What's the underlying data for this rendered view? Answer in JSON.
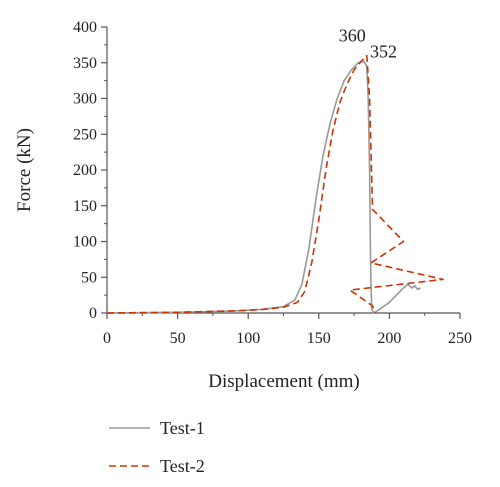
{
  "chart_data": {
    "type": "line",
    "title": "",
    "xlabel": "Displacement (mm)",
    "ylabel": "Force (kN)",
    "xlim": [
      0,
      250
    ],
    "ylim": [
      0,
      400
    ],
    "xticks": [
      "0",
      "50",
      "100",
      "150",
      "200",
      "250"
    ],
    "yticks": [
      "0",
      "50",
      "100",
      "150",
      "200",
      "250",
      "300",
      "350",
      "400"
    ],
    "grid": false,
    "legend_position": "bottom-left",
    "series": [
      {
        "name": "Test-1",
        "color": "#999999",
        "dash": "solid",
        "points": [
          [
            0,
            0
          ],
          [
            50,
            1
          ],
          [
            90,
            3
          ],
          [
            110,
            5
          ],
          [
            125,
            9
          ],
          [
            133,
            18
          ],
          [
            138,
            40
          ],
          [
            143,
            90
          ],
          [
            148,
            160
          ],
          [
            153,
            220
          ],
          [
            158,
            265
          ],
          [
            163,
            300
          ],
          [
            168,
            325
          ],
          [
            173,
            340
          ],
          [
            178,
            350
          ],
          [
            182,
            352
          ],
          [
            184,
            345
          ],
          [
            185,
            300
          ],
          [
            186,
            200
          ],
          [
            186.5,
            100
          ],
          [
            187,
            40
          ],
          [
            187.5,
            5
          ],
          [
            189,
            0
          ],
          [
            193,
            5
          ],
          [
            200,
            15
          ],
          [
            205,
            25
          ],
          [
            210,
            35
          ],
          [
            213,
            40
          ],
          [
            216,
            35
          ],
          [
            218,
            38
          ],
          [
            220,
            33
          ],
          [
            222,
            35
          ]
        ]
      },
      {
        "name": "Test-2",
        "color": "#cc3300",
        "dash": "dashed",
        "points": [
          [
            0,
            0
          ],
          [
            50,
            1
          ],
          [
            90,
            3
          ],
          [
            110,
            5
          ],
          [
            125,
            8
          ],
          [
            135,
            15
          ],
          [
            140,
            30
          ],
          [
            145,
            70
          ],
          [
            150,
            130
          ],
          [
            155,
            200
          ],
          [
            160,
            255
          ],
          [
            165,
            295
          ],
          [
            170,
            320
          ],
          [
            175,
            340
          ],
          [
            180,
            352
          ],
          [
            184,
            360
          ],
          [
            186,
            300
          ],
          [
            188,
            145
          ],
          [
            210,
            100
          ],
          [
            187,
            70
          ],
          [
            238,
            47
          ],
          [
            172,
            32
          ],
          [
            188,
            10
          ],
          [
            190,
            0
          ]
        ]
      }
    ],
    "annotations": [
      {
        "text": "360",
        "x": 184,
        "y": 360
      },
      {
        "text": "352",
        "x": 182,
        "y": 352
      }
    ]
  }
}
